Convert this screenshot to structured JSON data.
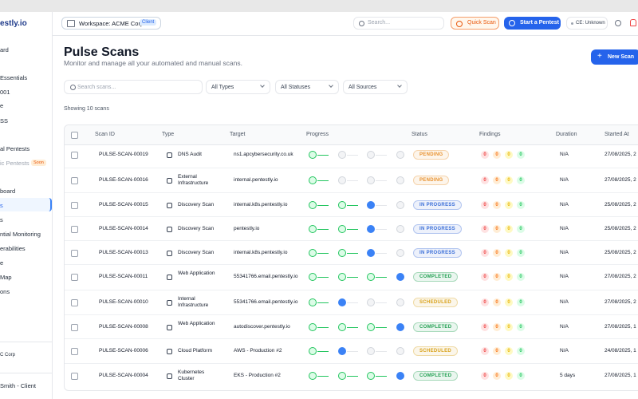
{
  "sidebar": {
    "logo": "estly.io",
    "items": [
      "ard",
      "Essentials",
      "001",
      "e",
      "SS",
      "al Pentests",
      "ic Pentests",
      "board",
      "s",
      "s",
      "ntial Monitoring",
      "erabilities",
      "e",
      "Map",
      "ons"
    ],
    "soon_badge": "Soon",
    "org": "C Corp",
    "user": "Smith - Client"
  },
  "header": {
    "workspace": "Workspace: ACME Corp",
    "workspace_badge": "Client",
    "search": "Search...",
    "quick_scan": "Quick Scan",
    "start_pentest": "Start a Pentest",
    "ce": "CE: Unknown"
  },
  "page": {
    "title": "Pulse Scans",
    "subtitle": "Monitor and manage all your automated and manual scans.",
    "new_scan": "New Scan",
    "search_placeholder": "Search scans...",
    "filters": [
      "All Types",
      "All Statuses",
      "All Sources"
    ],
    "count": "Showing 10 scans"
  },
  "table": {
    "columns": [
      "Scan ID",
      "Type",
      "Target",
      "Progress",
      "Status",
      "Findings",
      "Duration",
      "Started At"
    ],
    "rows": [
      {
        "id": "PULSE-SCAN-00019",
        "type": "DNS Audit",
        "target": "ns1.apcybersecurity.co.uk",
        "progress": {
          "done": 1,
          "active": 0
        },
        "status": "PENDING",
        "status_color": "#e8912d",
        "findings": [
          0,
          0,
          0,
          0
        ],
        "duration": "N/A",
        "started": "27/08/2025, 2"
      },
      {
        "id": "PULSE-SCAN-00016",
        "type": "External Infrastructure",
        "target": "internal.pentestly.io",
        "progress": {
          "done": 1,
          "active": 0
        },
        "status": "PENDING",
        "status_color": "#e8912d",
        "findings": [
          0,
          0,
          0,
          0
        ],
        "duration": "N/A",
        "started": "27/08/2025, 2"
      },
      {
        "id": "PULSE-SCAN-00015",
        "type": "Discovery Scan",
        "target": "internal.k8s.pentestly.io",
        "progress": {
          "done": 2,
          "active": 1
        },
        "status": "IN PROGRESS",
        "status_color": "#3b6fd8",
        "findings": [
          0,
          0,
          0,
          0
        ],
        "duration": "N/A",
        "started": "25/08/2025, 2"
      },
      {
        "id": "PULSE-SCAN-00014",
        "type": "Discovery Scan",
        "target": "pentestly.io",
        "progress": {
          "done": 2,
          "active": 1
        },
        "status": "IN PROGRESS",
        "status_color": "#3b6fd8",
        "findings": [
          0,
          0,
          0,
          0
        ],
        "duration": "N/A",
        "started": "25/08/2025, 2"
      },
      {
        "id": "PULSE-SCAN-00013",
        "type": "Discovery Scan",
        "target": "internal.k8s.pentestly.io",
        "progress": {
          "done": 2,
          "active": 1
        },
        "status": "IN PROGRESS",
        "status_color": "#3b6fd8",
        "findings": [
          0,
          0,
          0,
          0
        ],
        "duration": "N/A",
        "started": "25/08/2025, 2"
      },
      {
        "id": "PULSE-SCAN-00011",
        "type": "Web Application",
        "target": "55341766.email.pentestly.io",
        "progress": {
          "done": 3,
          "active": 1
        },
        "status": "COMPLETED",
        "status_color": "#22a052",
        "findings": [
          0,
          0,
          0,
          0
        ],
        "duration": "N/A",
        "started": "27/08/2025, 2"
      },
      {
        "id": "PULSE-SCAN-00010",
        "type": "Internal Infrastructure",
        "target": "55341766.email.pentestly.io",
        "progress": {
          "done": 1,
          "active": 1
        },
        "status": "SCHEDULED",
        "status_color": "#d9a21b",
        "findings": [
          0,
          0,
          0,
          0
        ],
        "duration": "N/A",
        "started": "27/08/2025, 2"
      },
      {
        "id": "PULSE-SCAN-00008",
        "type": "Web Application",
        "target": "autodiscover.pentestly.io",
        "progress": {
          "done": 3,
          "active": 1
        },
        "status": "COMPLETED",
        "status_color": "#22a052",
        "findings": [
          0,
          0,
          0,
          0
        ],
        "duration": "N/A",
        "started": "27/08/2025, 1"
      },
      {
        "id": "PULSE-SCAN-00006",
        "type": "Cloud Platform",
        "target": "AWS - Production #2",
        "progress": {
          "done": 1,
          "active": 1
        },
        "status": "SCHEDULED",
        "status_color": "#d9a21b",
        "findings": [
          0,
          0,
          0,
          0
        ],
        "duration": "N/A",
        "started": "24/08/2025, 1"
      },
      {
        "id": "PULSE-SCAN-00004",
        "type": "Kubernetes Cluster",
        "target": "EKS - Production #2",
        "progress": {
          "done": 3,
          "active": 1
        },
        "status": "COMPLETED",
        "status_color": "#22a052",
        "findings": [
          0,
          0,
          0,
          0
        ],
        "duration": "5 days",
        "started": "27/08/2025, 1"
      }
    ]
  }
}
